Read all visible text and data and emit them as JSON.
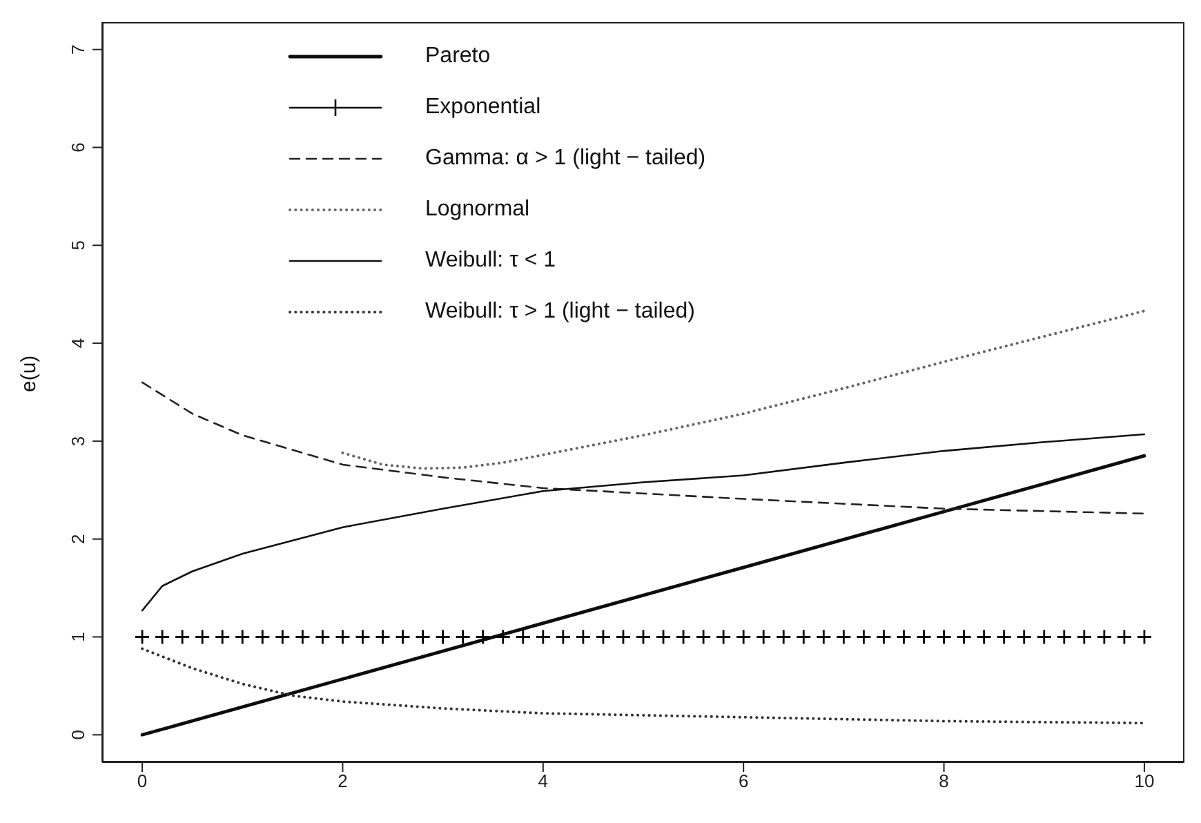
{
  "chart_data": {
    "type": "line",
    "ylabel": "e(u)",
    "xlim": [
      -0.4,
      10.4
    ],
    "ylim": [
      -0.28,
      7.28
    ],
    "xticks": [
      0,
      2,
      4,
      6,
      8,
      10
    ],
    "yticks": [
      0,
      1,
      2,
      3,
      4,
      5,
      6,
      7
    ],
    "grid": false,
    "legend": "top left",
    "series": [
      {
        "name": "Pareto",
        "color": "#0d0d0d",
        "line_style": "solid",
        "x": [
          0,
          2,
          4,
          6,
          8,
          10
        ],
        "values": [
          0,
          0.57,
          1.14,
          1.71,
          2.28,
          2.85
        ]
      },
      {
        "name": "Exponential",
        "type": "scatter",
        "color": "#000000",
        "marker": "cross",
        "x": [
          0,
          0.2,
          0.4,
          0.6,
          0.8,
          1,
          1.2,
          1.4,
          1.6,
          1.8,
          2,
          2.2,
          2.4,
          2.6,
          2.8,
          3,
          3.2,
          3.4,
          3.6,
          3.8,
          4,
          4.2,
          4.4,
          4.6,
          4.8,
          5,
          5.2,
          5.4,
          5.6,
          5.8,
          6,
          6.2,
          6.4,
          6.6,
          6.8,
          7,
          7.2,
          7.4,
          7.6,
          7.8,
          8,
          8.2,
          8.4,
          8.6,
          8.8,
          9,
          9.2,
          9.4,
          9.6,
          9.8,
          10
        ],
        "values": [
          1,
          1,
          1,
          1,
          1,
          1,
          1,
          1,
          1,
          1,
          1,
          1,
          1,
          1,
          1,
          1,
          1,
          1,
          1,
          1,
          1,
          1,
          1,
          1,
          1,
          1,
          1,
          1,
          1,
          1,
          1,
          1,
          1,
          1,
          1,
          1,
          1,
          1,
          1,
          1,
          1,
          1,
          1,
          1,
          1,
          1,
          1,
          1,
          1,
          1,
          1
        ]
      },
      {
        "name": "Gamma: α > 1 (light − tailed)",
        "color": "#222222",
        "line_style": "dashed",
        "x": [
          0,
          0.5,
          1,
          2,
          3,
          4,
          6,
          8,
          10
        ],
        "values": [
          3.6,
          3.28,
          3.06,
          2.76,
          2.63,
          2.52,
          2.41,
          2.31,
          2.26
        ]
      },
      {
        "name": "Lognormal",
        "color": "#666666",
        "line_style": "dotted",
        "x": [
          2,
          2.4,
          2.8,
          3.2,
          3.6,
          4,
          5,
          6,
          7,
          8,
          9,
          10
        ],
        "values": [
          2.88,
          2.76,
          2.72,
          2.73,
          2.78,
          2.86,
          3.06,
          3.28,
          3.54,
          3.81,
          4.07,
          4.33
        ]
      },
      {
        "name": "Weibull: τ < 1",
        "color": "#111111",
        "line_style": "solid",
        "x": [
          0,
          0.2,
          0.5,
          1,
          2,
          3,
          4,
          5,
          6,
          7,
          8,
          9,
          10
        ],
        "values": [
          1.27,
          1.52,
          1.67,
          1.85,
          2.12,
          2.31,
          2.49,
          2.58,
          2.65,
          2.78,
          2.9,
          2.99,
          3.07
        ]
      },
      {
        "name": "Weibull: τ > 1 (light − tailed)",
        "color": "#333333",
        "line_style": "dotted",
        "x": [
          0,
          0.5,
          1,
          1.5,
          2,
          3,
          4,
          6,
          8,
          10
        ],
        "values": [
          0.88,
          0.68,
          0.52,
          0.4,
          0.34,
          0.27,
          0.22,
          0.18,
          0.14,
          0.12
        ]
      }
    ]
  }
}
